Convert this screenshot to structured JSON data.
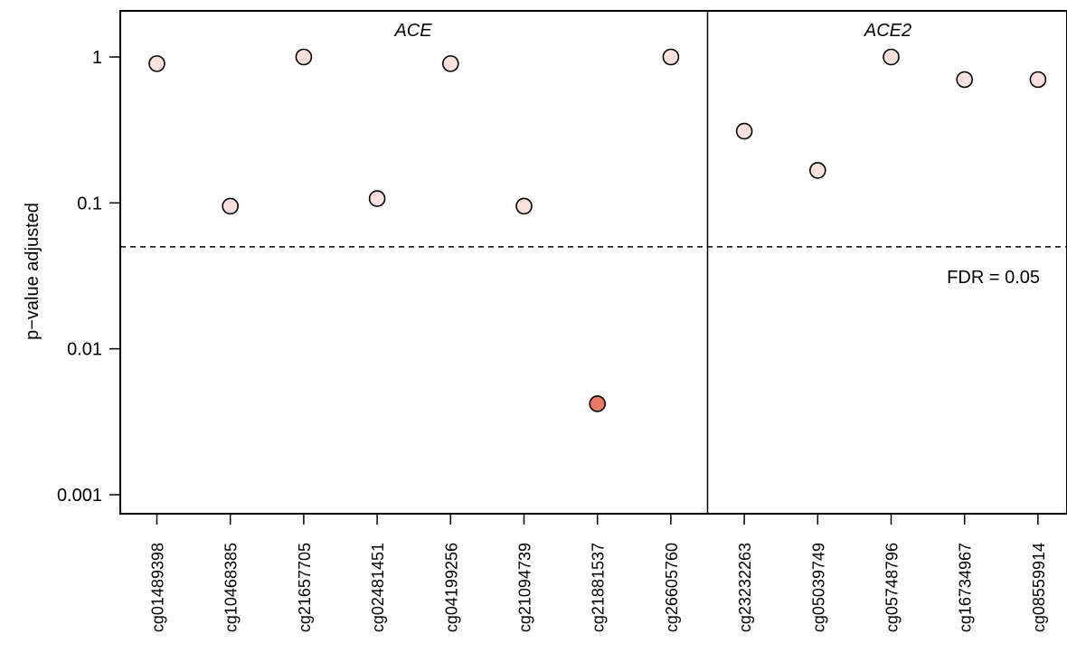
{
  "chart_data": {
    "type": "scatter",
    "ylabel": "p−value adjusted",
    "yscale": "log",
    "ylim": [
      0.0006,
      2.0
    ],
    "yticks": [
      {
        "value": 0.001,
        "label": "0.001"
      },
      {
        "value": 0.01,
        "label": "0.01"
      },
      {
        "value": 0.1,
        "label": "0.1"
      },
      {
        "value": 1,
        "label": "1"
      }
    ],
    "panels": [
      {
        "label": "ACE",
        "categories": [
          "cg01489398",
          "cg10468385",
          "cg21657705",
          "cg02481451",
          "cg04199256",
          "cg21094739",
          "cg21881537",
          "cg26605760"
        ]
      },
      {
        "label": "ACE2",
        "categories": [
          "cg23232263",
          "cg05039749",
          "cg05748796",
          "cg16734967",
          "cg08559914"
        ]
      }
    ],
    "points": [
      {
        "x": "cg01489398",
        "y": 0.9,
        "color": "#fbe0dc"
      },
      {
        "x": "cg10468385",
        "y": 0.095,
        "color": "#fbe0dc"
      },
      {
        "x": "cg21657705",
        "y": 1.0,
        "color": "#fbe0dc"
      },
      {
        "x": "cg02481451",
        "y": 0.107,
        "color": "#fbe0dc"
      },
      {
        "x": "cg04199256",
        "y": 0.9,
        "color": "#fbe0dc"
      },
      {
        "x": "cg21094739",
        "y": 0.095,
        "color": "#fbe0dc"
      },
      {
        "x": "cg21881537",
        "y": 0.0042,
        "color": "#ea7a67"
      },
      {
        "x": "cg26605760",
        "y": 1.0,
        "color": "#fbe0dc"
      },
      {
        "x": "cg23232263",
        "y": 0.31,
        "color": "#fbe0dc"
      },
      {
        "x": "cg05039749",
        "y": 0.167,
        "color": "#fbe0dc"
      },
      {
        "x": "cg05748796",
        "y": 1.0,
        "color": "#fbe0dc"
      },
      {
        "x": "cg16734967",
        "y": 0.7,
        "color": "#fbe0dc"
      },
      {
        "x": "cg08559914",
        "y": 0.7,
        "color": "#fbe0dc"
      }
    ],
    "threshold": {
      "value": 0.05,
      "label": "FDR = 0.05",
      "style": "dashed"
    },
    "grid": false,
    "legend": "none"
  }
}
